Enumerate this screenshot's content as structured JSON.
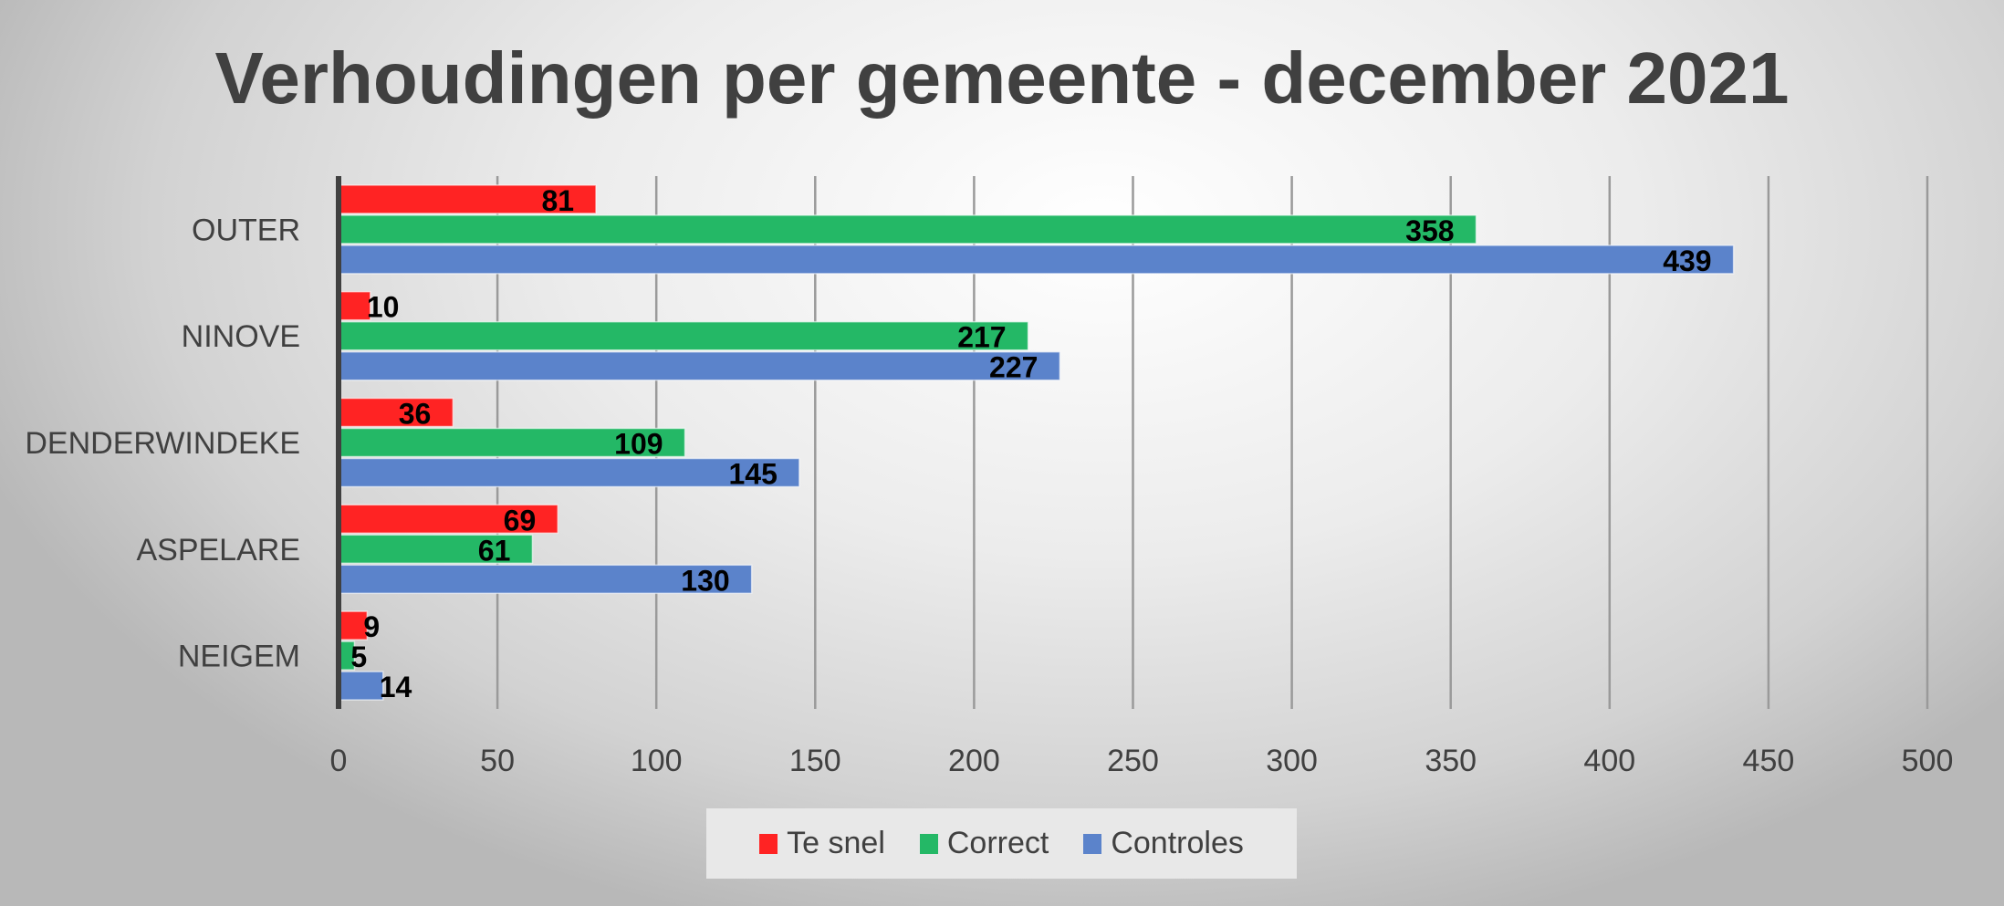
{
  "chart_data": {
    "type": "bar",
    "orientation": "horizontal",
    "title": "Verhoudingen per gemeente - december 2021",
    "categories": [
      "OUTER",
      "NINOVE",
      "DENDERWINDEKE",
      "ASPELARE",
      "NEIGEM"
    ],
    "series": [
      {
        "name": "Te snel",
        "color": "#ff2323",
        "values": [
          81,
          10,
          36,
          69,
          9
        ]
      },
      {
        "name": "Correct",
        "color": "#24b866",
        "values": [
          358,
          217,
          109,
          61,
          5
        ]
      },
      {
        "name": "Controles",
        "color": "#5b83cb",
        "values": [
          439,
          227,
          145,
          130,
          14
        ]
      }
    ],
    "xlim": [
      0,
      500
    ],
    "xticks": [
      0,
      50,
      100,
      150,
      200,
      250,
      300,
      350,
      400,
      450,
      500
    ],
    "grid": true,
    "legend_position": "bottom",
    "xlabel": "",
    "ylabel": ""
  }
}
